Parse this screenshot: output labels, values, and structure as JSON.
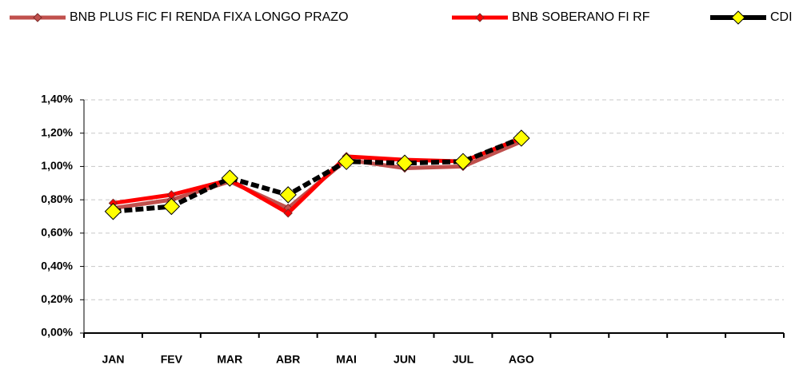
{
  "chart_data": {
    "type": "line",
    "categories": [
      "JAN",
      "FEV",
      "MAR",
      "ABR",
      "MAI",
      "JUN",
      "JUL",
      "AGO",
      null,
      null,
      null,
      null
    ],
    "series": [
      {
        "name": "BNB PLUS FIC FI RENDA FIXA LONGO PRAZO",
        "color": "#c0504d",
        "values": [
          0.75,
          0.8,
          0.91,
          0.75,
          1.04,
          0.99,
          1.0,
          1.15,
          null,
          null,
          null,
          null
        ]
      },
      {
        "name": "BNB SOBERANO FI RF",
        "color": "#ff0000",
        "values": [
          0.78,
          0.83,
          0.92,
          0.72,
          1.06,
          1.04,
          1.03,
          1.17,
          null,
          null,
          null,
          null
        ]
      },
      {
        "name": "CDI",
        "color": "#000000",
        "marker_color": "#ffff00",
        "values": [
          0.73,
          0.76,
          0.93,
          0.83,
          1.03,
          1.02,
          1.03,
          1.17,
          null,
          null,
          null,
          null
        ]
      }
    ],
    "ylim": [
      0,
      1.4
    ],
    "yticks": [
      {
        "value": 0,
        "label": "0,00%"
      },
      {
        "value": 0.2,
        "label": "0,20%"
      },
      {
        "value": 0.4,
        "label": "0,40%"
      },
      {
        "value": 0.6,
        "label": "0,60%"
      },
      {
        "value": 0.8,
        "label": "0,80%"
      },
      {
        "value": 1.0,
        "label": "1,00%"
      },
      {
        "value": 1.2,
        "label": "1,20%"
      },
      {
        "value": 1.4,
        "label": "1,40%"
      }
    ],
    "grid": true
  }
}
